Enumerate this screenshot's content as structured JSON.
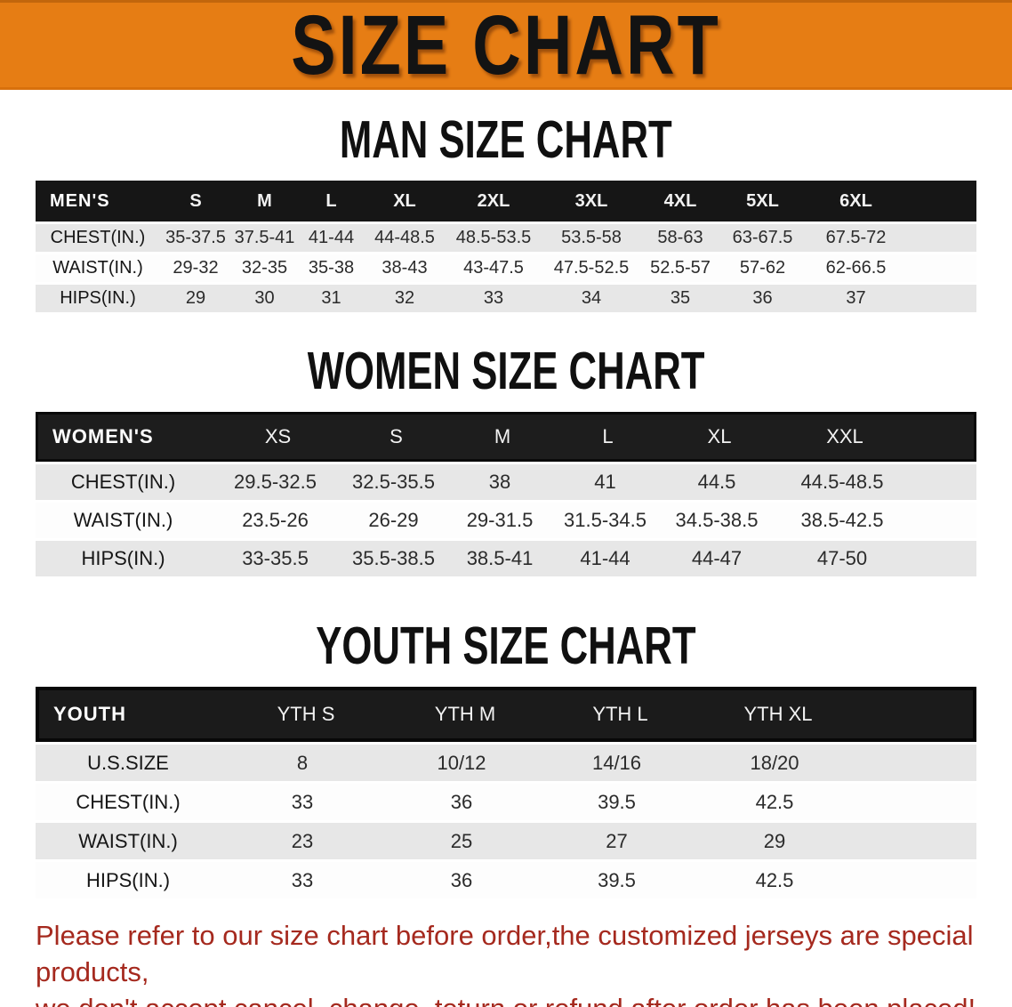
{
  "banner": {
    "title": "SIZE CHART",
    "bg_color": "#e67d14",
    "text_color": "#131313"
  },
  "headings": {
    "man": "MAN SIZE CHART",
    "women": "WOMEN SIZE CHART",
    "youth": "YOUTH SIZE CHART"
  },
  "tables": {
    "men": {
      "header": {
        "label": "MEN'S",
        "sizes": [
          "S",
          "M",
          "L",
          "XL",
          "2XL",
          "3XL",
          "4XL",
          "5XL",
          "6XL"
        ]
      },
      "rows": [
        {
          "label": "CHEST(IN.)",
          "values": [
            "35-37.5",
            "37.5-41",
            "41-44",
            "44-48.5",
            "48.5-53.5",
            "53.5-58",
            "58-63",
            "63-67.5",
            "67.5-72"
          ]
        },
        {
          "label": "WAIST(IN.)",
          "values": [
            "29-32",
            "32-35",
            "35-38",
            "38-43",
            "43-47.5",
            "47.5-52.5",
            "52.5-57",
            "57-62",
            "62-66.5"
          ]
        },
        {
          "label": "HIPS(IN.)",
          "values": [
            "29",
            "30",
            "31",
            "32",
            "33",
            "34",
            "35",
            "36",
            "37"
          ]
        }
      ]
    },
    "women": {
      "header": {
        "label": "WOMEN'S",
        "sizes": [
          "XS",
          "S",
          "M",
          "L",
          "XL",
          "XXL"
        ]
      },
      "rows": [
        {
          "label": "CHEST(IN.)",
          "values": [
            "29.5-32.5",
            "32.5-35.5",
            "38",
            "41",
            "44.5",
            "44.5-48.5"
          ]
        },
        {
          "label": "WAIST(IN.)",
          "values": [
            "23.5-26",
            "26-29",
            "29-31.5",
            "31.5-34.5",
            "34.5-38.5",
            "38.5-42.5"
          ]
        },
        {
          "label": "HIPS(IN.)",
          "values": [
            "33-35.5",
            "35.5-38.5",
            "38.5-41",
            "41-44",
            "44-47",
            "47-50"
          ]
        }
      ]
    },
    "youth": {
      "header": {
        "label": "YOUTH",
        "sizes": [
          "YTH S",
          "YTH M",
          "YTH L",
          "YTH XL"
        ]
      },
      "rows": [
        {
          "label": "U.S.SIZE",
          "values": [
            "8",
            "10/12",
            "14/16",
            "18/20"
          ]
        },
        {
          "label": "CHEST(IN.)",
          "values": [
            "33",
            "36",
            "39.5",
            "42.5"
          ]
        },
        {
          "label": "WAIST(IN.)",
          "values": [
            "23",
            "25",
            "27",
            "29"
          ]
        },
        {
          "label": "HIPS(IN.)",
          "values": [
            "33",
            "36",
            "39.5",
            "42.5"
          ]
        }
      ]
    }
  },
  "disclaimer": {
    "line1": "Please refer to our size chart before order,the customized jerseys are special products,",
    "line2": "we don't accept cancel, change, teturn or refund after order has been placed!",
    "color": "#a5291e"
  },
  "colors": {
    "banner_bg": "#e67d14",
    "table_header_bg": "#161616",
    "row_shade": "#e7e7e7",
    "row_plain": "#fdfdfd",
    "disclaimer_red": "#a5291e"
  }
}
